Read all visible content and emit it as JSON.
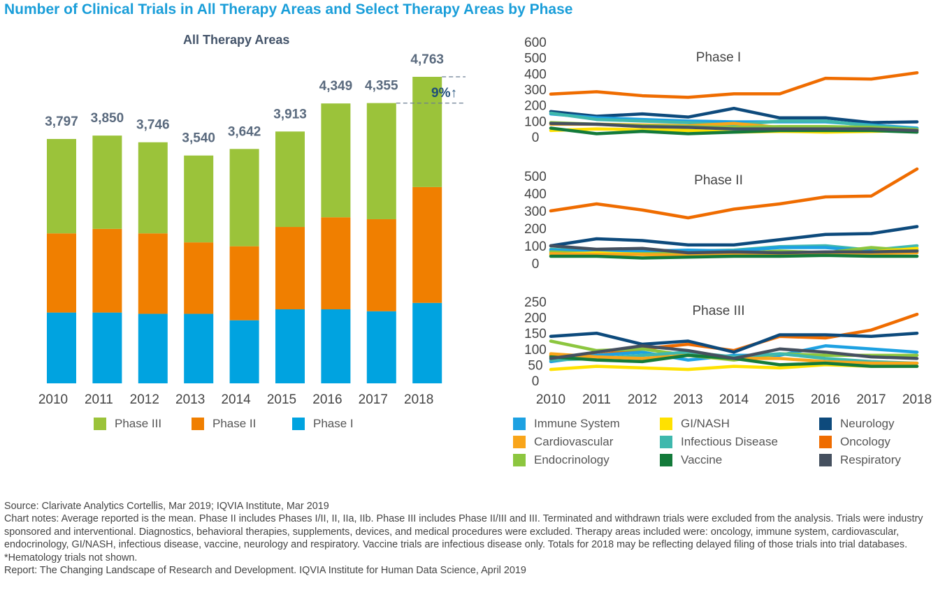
{
  "title": "Number of Clinical Trials in All Therapy Areas and Select Therapy Areas by Phase",
  "colors": {
    "phase1": "#00a3e0",
    "phase2": "#f07f00",
    "phase3": "#9bc33a",
    "Immune System": "#1da1e2",
    "GI/NASH": "#ffe100",
    "Neurology": "#0d4a7c",
    "Cardiovascular": "#f9a51a",
    "Infectious Disease": "#3fb8ad",
    "Oncology": "#ef6c00",
    "Endocrinology": "#8cc63f",
    "Vaccine": "#137a3a",
    "Respiratory": "#45505f"
  },
  "chart_data": [
    {
      "type": "bar",
      "stacked": true,
      "title": "All Therapy Areas",
      "categories": [
        "2010",
        "2011",
        "2012",
        "2013",
        "2014",
        "2015",
        "2016",
        "2017",
        "2018"
      ],
      "totals": [
        "3,797",
        "3,850",
        "3,746",
        "3,540",
        "3,642",
        "3,913",
        "4,349",
        "4,355",
        "4,763"
      ],
      "series": [
        {
          "name": "Phase I",
          "values": [
            1100,
            1100,
            1080,
            1080,
            980,
            1150,
            1150,
            1120,
            1250
          ]
        },
        {
          "name": "Phase II",
          "values": [
            1230,
            1300,
            1250,
            1110,
            1150,
            1280,
            1430,
            1430,
            1800
          ]
        },
        {
          "name": "Phase III",
          "values": [
            1467,
            1450,
            1416,
            1350,
            1512,
            1483,
            1769,
            1805,
            1713
          ]
        }
      ],
      "annotation": "9%↑"
    },
    {
      "type": "line",
      "title": "Phase I",
      "x": [
        "2010",
        "2011",
        "2012",
        "2013",
        "2014",
        "2015",
        "2016",
        "2017",
        "2018"
      ],
      "yticks": [
        0,
        100,
        200,
        300,
        400,
        500,
        600
      ],
      "series": [
        {
          "name": "Oncology",
          "values": [
            270,
            285,
            260,
            250,
            272,
            272,
            370,
            365,
            405
          ]
        },
        {
          "name": "Neurology",
          "values": [
            160,
            130,
            145,
            125,
            180,
            120,
            120,
            90,
            95
          ]
        },
        {
          "name": "Immune System",
          "values": [
            145,
            120,
            110,
            100,
            95,
            95,
            95,
            75,
            55
          ]
        },
        {
          "name": "Infectious Disease",
          "values": [
            150,
            110,
            100,
            90,
            75,
            100,
            100,
            70,
            50
          ]
        },
        {
          "name": "Cardiovascular",
          "values": [
            80,
            80,
            75,
            70,
            85,
            60,
            55,
            50,
            45
          ]
        },
        {
          "name": "Endocrinology",
          "values": [
            90,
            80,
            70,
            65,
            60,
            65,
            65,
            60,
            45
          ]
        },
        {
          "name": "GI/NASH",
          "values": [
            40,
            50,
            45,
            40,
            30,
            35,
            30,
            35,
            40
          ]
        },
        {
          "name": "Vaccine",
          "values": [
            55,
            20,
            35,
            20,
            30,
            40,
            40,
            40,
            30
          ]
        },
        {
          "name": "Respiratory",
          "values": [
            85,
            80,
            65,
            60,
            50,
            50,
            50,
            50,
            40
          ]
        }
      ]
    },
    {
      "type": "line",
      "title": "Phase II",
      "x": [
        "2010",
        "2011",
        "2012",
        "2013",
        "2014",
        "2015",
        "2016",
        "2017",
        "2018"
      ],
      "yticks": [
        0,
        100,
        200,
        300,
        400,
        500
      ],
      "series": [
        {
          "name": "Oncology",
          "values": [
            300,
            340,
            305,
            260,
            310,
            340,
            380,
            385,
            540
          ]
        },
        {
          "name": "Neurology",
          "values": [
            100,
            140,
            130,
            105,
            105,
            135,
            165,
            170,
            210
          ]
        },
        {
          "name": "Infectious Disease",
          "values": [
            80,
            70,
            75,
            70,
            75,
            95,
            100,
            75,
            100
          ]
        },
        {
          "name": "Immune System",
          "values": [
            75,
            65,
            70,
            75,
            70,
            90,
            90,
            70,
            75
          ]
        },
        {
          "name": "Endocrinology",
          "values": [
            65,
            55,
            55,
            55,
            55,
            70,
            60,
            90,
            70
          ]
        },
        {
          "name": "GI/NASH",
          "values": [
            50,
            60,
            50,
            40,
            45,
            50,
            55,
            65,
            85
          ]
        },
        {
          "name": "Cardiovascular",
          "values": [
            55,
            50,
            50,
            45,
            50,
            55,
            55,
            55,
            60
          ]
        },
        {
          "name": "Respiratory",
          "values": [
            100,
            80,
            85,
            60,
            65,
            60,
            65,
            65,
            70
          ]
        },
        {
          "name": "Vaccine",
          "values": [
            40,
            40,
            30,
            35,
            40,
            40,
            45,
            40,
            40
          ]
        }
      ]
    },
    {
      "type": "line",
      "title": "Phase III",
      "x": [
        "2010",
        "2011",
        "2012",
        "2013",
        "2014",
        "2015",
        "2016",
        "2017",
        "2018"
      ],
      "yticks": [
        0,
        50,
        100,
        150,
        200,
        250
      ],
      "series": [
        {
          "name": "Oncology",
          "values": [
            80,
            80,
            100,
            115,
            95,
            140,
            135,
            160,
            210
          ]
        },
        {
          "name": "Neurology",
          "values": [
            140,
            150,
            115,
            125,
            90,
            145,
            145,
            140,
            150
          ]
        },
        {
          "name": "Immune System",
          "values": [
            60,
            80,
            90,
            65,
            80,
            80,
            110,
            100,
            90
          ]
        },
        {
          "name": "Endocrinology",
          "values": [
            125,
            95,
            100,
            80,
            65,
            85,
            80,
            80,
            80
          ]
        },
        {
          "name": "Infectious Disease",
          "values": [
            65,
            70,
            80,
            90,
            75,
            85,
            70,
            60,
            55
          ]
        },
        {
          "name": "Cardiovascular",
          "values": [
            85,
            75,
            70,
            80,
            70,
            70,
            60,
            55,
            55
          ]
        },
        {
          "name": "GI/NASH",
          "values": [
            35,
            45,
            40,
            35,
            45,
            40,
            50,
            45,
            45
          ]
        },
        {
          "name": "Vaccine",
          "values": [
            75,
            65,
            60,
            80,
            70,
            50,
            55,
            45,
            45
          ]
        },
        {
          "name": "Respiratory",
          "values": [
            70,
            90,
            110,
            95,
            70,
            100,
            90,
            75,
            70
          ]
        }
      ]
    }
  ],
  "bar_legend": [
    "Phase III",
    "Phase II",
    "Phase I"
  ],
  "line_legend": [
    [
      "Immune System",
      "GI/NASH",
      "Neurology"
    ],
    [
      "Cardiovascular",
      "Infectious Disease",
      "Oncology"
    ],
    [
      "Endocrinology",
      "Vaccine",
      "Respiratory"
    ]
  ],
  "notes": {
    "source": "Source: Clarivate Analytics Cortellis, Mar 2019; IQVIA Institute, Mar 2019",
    "chart_notes": "Chart notes: Average reported is the mean. Phase II includes Phases I/II, II, IIa, IIb. Phase III includes Phase II/III and III. Terminated and withdrawn trials were excluded from the analysis. Trials were industry sponsored and interventional. Diagnostics, behavioral therapies, supplements, devices, and medical procedures were excluded. Therapy areas included were: oncology, immune system, cardiovascular, endocrinology, GI/NASH, infectious disease, vaccine, neurology and respiratory. Vaccine trials are infectious disease only. Totals for 2018 may be reflecting delayed filing of those trials into trial databases. *Hematology trials not shown.",
    "report": "Report: The Changing Landscape of Research and Development. IQVIA Institute for Human Data Science, April 2019"
  }
}
